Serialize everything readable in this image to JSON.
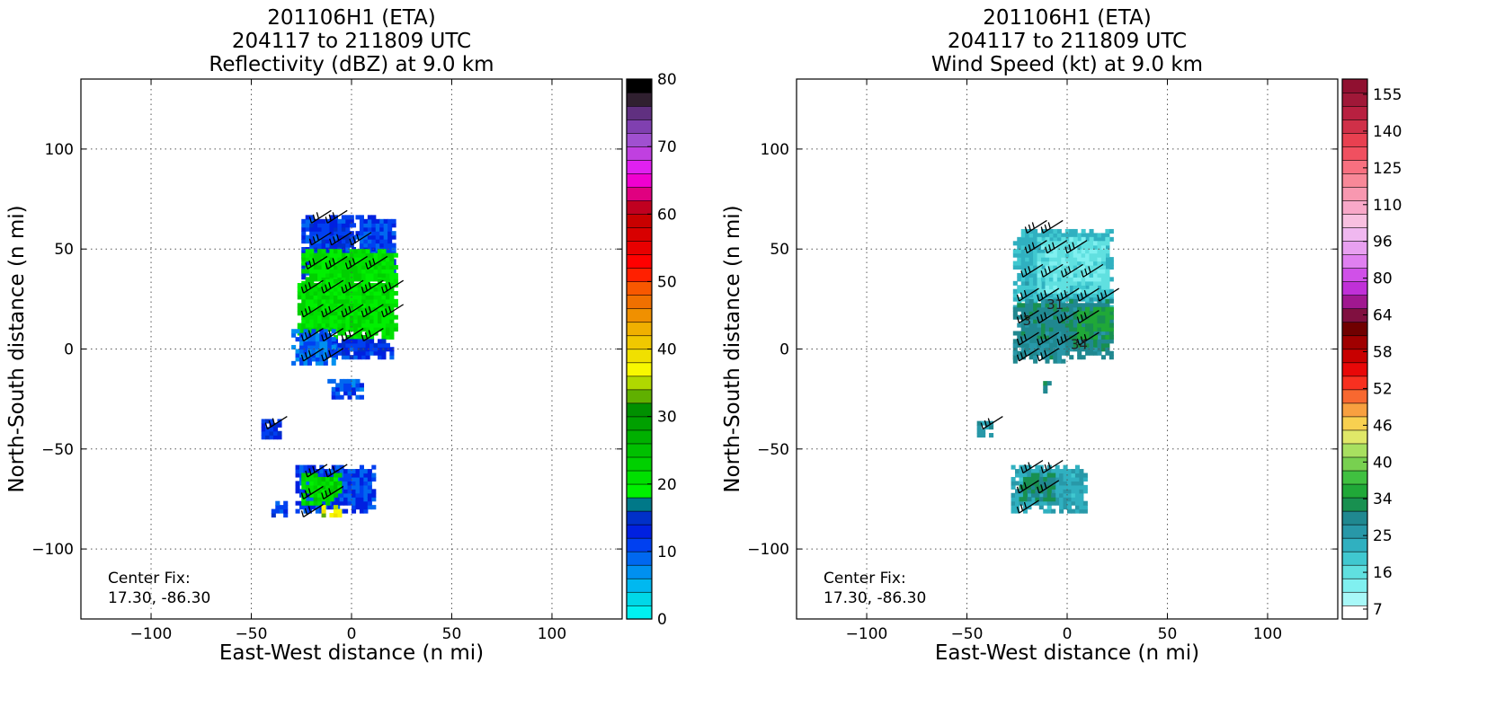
{
  "chart_data": [
    {
      "type": "heatmap",
      "title": [
        "201106H1 (ETA)",
        "204117 to 211809 UTC",
        "Reflectivity (dBZ) at 9.0 km"
      ],
      "xlabel": "East-West distance (n mi)",
      "ylabel": "North-South distance (n mi)",
      "xlim": [
        -135,
        135
      ],
      "ylim": [
        -135,
        135
      ],
      "xticks": [
        -100,
        -50,
        0,
        50,
        100
      ],
      "yticks": [
        -100,
        -50,
        0,
        50,
        100
      ],
      "grid": true,
      "annotation": [
        "Center Fix:",
        "17.30, -86.30"
      ],
      "colorbar": {
        "min": 0,
        "max": 80,
        "step": 2.5,
        "ticks": [
          0,
          10,
          20,
          30,
          40,
          50,
          60,
          70,
          80
        ],
        "colors": [
          "#00f0f0",
          "#00d8e8",
          "#00b8f0",
          "#0090f0",
          "#0068f0",
          "#0040f0",
          "#0020e0",
          "#0030c8",
          "#007888",
          "#00f000",
          "#00e000",
          "#00d000",
          "#00c000",
          "#00b000",
          "#00a000",
          "#009000",
          "#60b000",
          "#b0d800",
          "#f8f800",
          "#f0e000",
          "#f0c800",
          "#f0b000",
          "#f09000",
          "#f07000",
          "#f85800",
          "#ff2000",
          "#ff0000",
          "#e80000",
          "#d80000",
          "#c80000",
          "#c00020",
          "#e00080",
          "#f000d0",
          "#e020f0",
          "#c040e0",
          "#a050d0",
          "#8040b0",
          "#603080",
          "#302030",
          "#000000"
        ]
      },
      "regions": [
        {
          "x": [
            -25,
            0
          ],
          "y": [
            35,
            67
          ],
          "value": 12.5
        },
        {
          "x": [
            0,
            22
          ],
          "y": [
            35,
            67
          ],
          "value": 11
        },
        {
          "x": [
            -25,
            22
          ],
          "y": [
            30,
            50
          ],
          "value": 21
        },
        {
          "x": [
            -27,
            23
          ],
          "y": [
            5,
            35
          ],
          "value": 21
        },
        {
          "x": [
            -25,
            20
          ],
          "y": [
            -5,
            5
          ],
          "value": 12
        },
        {
          "x": [
            -30,
            -8
          ],
          "y": [
            -8,
            10
          ],
          "value": 9
        },
        {
          "x": [
            -12,
            5
          ],
          "y": [
            -25,
            -15
          ],
          "value": 10
        },
        {
          "x": [
            -45,
            -36
          ],
          "y": [
            -45,
            -35
          ],
          "value": 13
        },
        {
          "x": [
            -28,
            12
          ],
          "y": [
            -82,
            -58
          ],
          "value": 11
        },
        {
          "x": [
            -25,
            -5
          ],
          "y": [
            -78,
            -62
          ],
          "value": 22
        },
        {
          "x": [
            -15,
            -6
          ],
          "y": [
            -84,
            -78
          ],
          "value": 36
        },
        {
          "x": [
            -40,
            -33
          ],
          "y": [
            -84,
            -77
          ],
          "value": 12
        }
      ],
      "barbs": [
        {
          "x": -20,
          "y": 63
        },
        {
          "x": -12,
          "y": 63
        },
        {
          "x": -20,
          "y": 52
        },
        {
          "x": -10,
          "y": 52
        },
        {
          "x": 0,
          "y": 52
        },
        {
          "x": -22,
          "y": 40
        },
        {
          "x": -12,
          "y": 40
        },
        {
          "x": -2,
          "y": 40
        },
        {
          "x": 8,
          "y": 40
        },
        {
          "x": -24,
          "y": 28
        },
        {
          "x": -14,
          "y": 28
        },
        {
          "x": -4,
          "y": 28
        },
        {
          "x": 6,
          "y": 28
        },
        {
          "x": 16,
          "y": 28
        },
        {
          "x": -24,
          "y": 16
        },
        {
          "x": -14,
          "y": 16
        },
        {
          "x": -4,
          "y": 16
        },
        {
          "x": 6,
          "y": 16
        },
        {
          "x": 16,
          "y": 16
        },
        {
          "x": -24,
          "y": 4
        },
        {
          "x": -14,
          "y": 4
        },
        {
          "x": -4,
          "y": 4
        },
        {
          "x": 6,
          "y": 4
        },
        {
          "x": -24,
          "y": -6
        },
        {
          "x": -14,
          "y": -6
        },
        {
          "x": -42,
          "y": -40
        },
        {
          "x": -22,
          "y": -64
        },
        {
          "x": -12,
          "y": -64
        },
        {
          "x": -24,
          "y": -75
        },
        {
          "x": -14,
          "y": -75
        },
        {
          "x": -24,
          "y": -84
        }
      ]
    },
    {
      "type": "heatmap",
      "title": [
        "201106H1 (ETA)",
        "204117 to 211809 UTC",
        "Wind Speed (kt) at 9.0 km"
      ],
      "xlabel": "East-West distance (n mi)",
      "ylabel": "North-South distance (n mi)",
      "xlim": [
        -135,
        135
      ],
      "ylim": [
        -135,
        135
      ],
      "xticks": [
        -100,
        -50,
        0,
        50,
        100
      ],
      "yticks": [
        -100,
        -50,
        0,
        50,
        100
      ],
      "grid": true,
      "annotation": [
        "Center Fix:",
        "17.30, -86.30"
      ],
      "colorbar": {
        "min": 7,
        "max": 160,
        "ticks": [
          7,
          16,
          25,
          34,
          40,
          46,
          52,
          58,
          64,
          80,
          96,
          110,
          125,
          140,
          155
        ],
        "colors": [
          "#ffffff",
          "#a8f8f8",
          "#80f0f0",
          "#60e0e0",
          "#40c8d0",
          "#30b0c0",
          "#2898a8",
          "#208890",
          "#189050",
          "#20a838",
          "#40c040",
          "#78d050",
          "#a8e060",
          "#e0e868",
          "#f8d050",
          "#f8a040",
          "#f86830",
          "#f83020",
          "#e80808",
          "#c80000",
          "#a00000",
          "#700000",
          "#801040",
          "#a01890",
          "#c030d8",
          "#d050e8",
          "#e080f0",
          "#e8a0f0",
          "#f0b8f0",
          "#f8c0e0",
          "#f8a8c8",
          "#f898b0",
          "#f88898",
          "#f87080",
          "#f05060",
          "#e84050",
          "#d03048",
          "#b82040",
          "#a01838",
          "#901030"
        ]
      },
      "regions": [
        {
          "x": [
            -27,
            23
          ],
          "y": [
            20,
            60
          ],
          "value": 27
        },
        {
          "x": [
            -15,
            20
          ],
          "y": [
            28,
            55
          ],
          "value": 20
        },
        {
          "x": [
            -27,
            23
          ],
          "y": [
            -5,
            25
          ],
          "value": 36
        },
        {
          "x": [
            5,
            23
          ],
          "y": [
            5,
            20
          ],
          "value": 42
        },
        {
          "x": [
            -27,
            0
          ],
          "y": [
            -7,
            5
          ],
          "value": 34
        },
        {
          "x": [
            -12,
            -8
          ],
          "y": [
            -22,
            -17
          ],
          "value": 35
        },
        {
          "x": [
            -45,
            -38
          ],
          "y": [
            -44,
            -37
          ],
          "value": 32
        },
        {
          "x": [
            -28,
            10
          ],
          "y": [
            -82,
            -58
          ],
          "value": 29
        },
        {
          "x": [
            -24,
            -6
          ],
          "y": [
            -76,
            -62
          ],
          "value": 38
        }
      ],
      "contour_labels": [
        {
          "x": -6,
          "y": 20,
          "text": "31"
        },
        {
          "x": -20,
          "y": 12,
          "text": "3"
        },
        {
          "x": 6,
          "y": 0,
          "text": "34"
        }
      ],
      "barbs": [
        {
          "x": -20,
          "y": 58
        },
        {
          "x": -12,
          "y": 58
        },
        {
          "x": -20,
          "y": 48
        },
        {
          "x": -10,
          "y": 48
        },
        {
          "x": 0,
          "y": 48
        },
        {
          "x": -22,
          "y": 36
        },
        {
          "x": -12,
          "y": 36
        },
        {
          "x": -2,
          "y": 36
        },
        {
          "x": 8,
          "y": 36
        },
        {
          "x": -24,
          "y": 24
        },
        {
          "x": -14,
          "y": 24
        },
        {
          "x": -4,
          "y": 24
        },
        {
          "x": 6,
          "y": 24
        },
        {
          "x": 16,
          "y": 24
        },
        {
          "x": -24,
          "y": 13
        },
        {
          "x": -14,
          "y": 13
        },
        {
          "x": -4,
          "y": 13
        },
        {
          "x": 6,
          "y": 13
        },
        {
          "x": -24,
          "y": 2
        },
        {
          "x": -14,
          "y": 2
        },
        {
          "x": -4,
          "y": 2
        },
        {
          "x": 6,
          "y": 2
        },
        {
          "x": -24,
          "y": -6
        },
        {
          "x": -14,
          "y": -6
        },
        {
          "x": -42,
          "y": -40
        },
        {
          "x": -22,
          "y": -62
        },
        {
          "x": -12,
          "y": -62
        },
        {
          "x": -24,
          "y": -72
        },
        {
          "x": -14,
          "y": -72
        },
        {
          "x": -24,
          "y": -82
        }
      ]
    }
  ]
}
